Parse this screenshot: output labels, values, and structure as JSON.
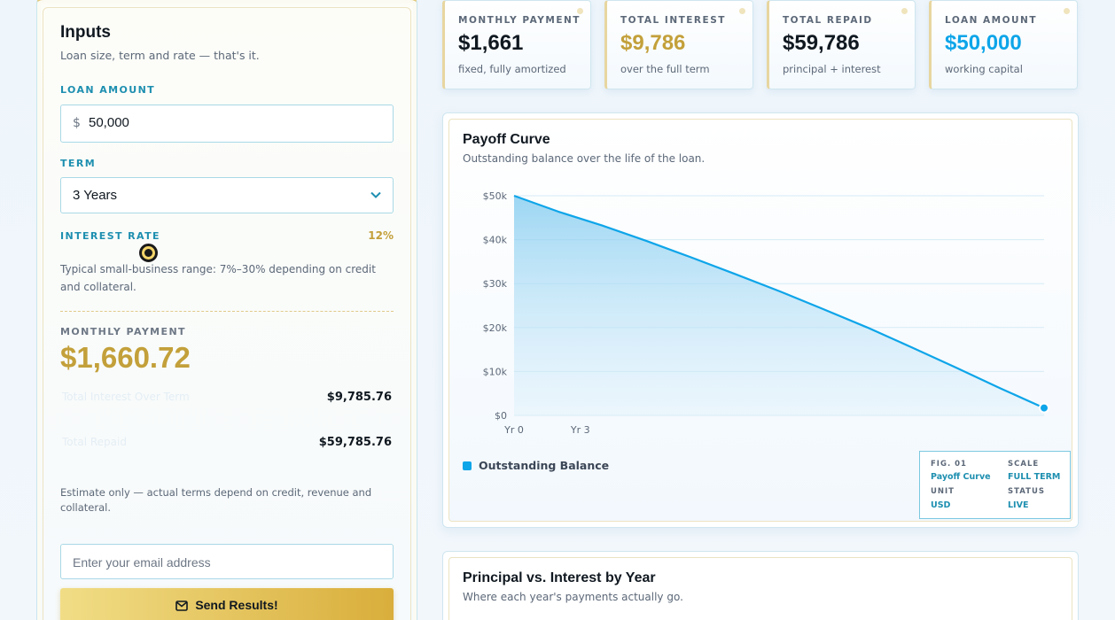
{
  "inputs": {
    "title": "Inputs",
    "subtitle": "Loan size, term and rate — that's it.",
    "loan_amount_label": "LOAN AMOUNT",
    "currency_symbol": "$",
    "loan_amount_value": "50,000",
    "term_label": "TERM",
    "term_value": "3 Years",
    "rate_label": "INTEREST RATE",
    "rate_value": "12%",
    "rate_help": "Typical small-business range: 7%–30% depending on credit and collateral.",
    "monthly_payment_label": "MONTHLY PAYMENT",
    "monthly_payment_value": "$1,660.72",
    "total_interest_label": "Total Interest Over Term",
    "total_interest_value": "$9,785.76",
    "total_repaid_label": "Total Repaid",
    "total_repaid_value": "$59,785.76",
    "disclaimer": "Estimate only — actual terms depend on credit, revenue and collateral.",
    "email_placeholder": "Enter your email address",
    "send_label": "Send Results!"
  },
  "cards": [
    {
      "label": "MONTHLY PAYMENT",
      "value": "$1,661",
      "sub": "fixed, fully amortized",
      "color": "#101820"
    },
    {
      "label": "TOTAL INTEREST",
      "value": "$9,786",
      "sub": "over the full term",
      "color": "#c3a03a"
    },
    {
      "label": "TOTAL REPAID",
      "value": "$59,786",
      "sub": "principal + interest",
      "color": "#101820"
    },
    {
      "label": "LOAN AMOUNT",
      "value": "$50,000",
      "sub": "working capital",
      "color": "#0ea5e9"
    }
  ],
  "payoff": {
    "title": "Payoff Curve",
    "subtitle": "Outstanding balance over the life of the loan.",
    "legend": "Outstanding Balance",
    "fig": {
      "fig_k": "FIG. 01",
      "fig_v": "Payoff Curve",
      "scale_k": "SCALE",
      "scale_v": "FULL TERM",
      "unit_k": "UNIT",
      "unit_v": "USD",
      "status_k": "STATUS",
      "status_v": "LIVE"
    }
  },
  "chart_data": {
    "type": "area",
    "title": "Payoff Curve",
    "xlabel": "",
    "ylabel": "",
    "x_tick_labels": [
      "Yr 0",
      "Yr 3"
    ],
    "y_tick_labels": [
      "$0",
      "$10k",
      "$20k",
      "$30k",
      "$40k",
      "$50k"
    ],
    "ylim": [
      0,
      50000
    ],
    "xlim": [
      0,
      36
    ],
    "grid": true,
    "line_color": "#0ea5e9",
    "series": [
      {
        "name": "Outstanding Balance",
        "x": [
          0,
          3,
          6,
          9,
          12,
          15,
          18,
          21,
          24,
          27,
          30,
          33,
          36
        ],
        "values": [
          50000,
          46400,
          43200,
          39700,
          36000,
          32200,
          28300,
          24200,
          20000,
          15500,
          10900,
          6200,
          1700
        ]
      }
    ]
  },
  "chart2": {
    "title": "Principal vs. Interest by Year",
    "subtitle": "Where each year's payments actually go."
  }
}
